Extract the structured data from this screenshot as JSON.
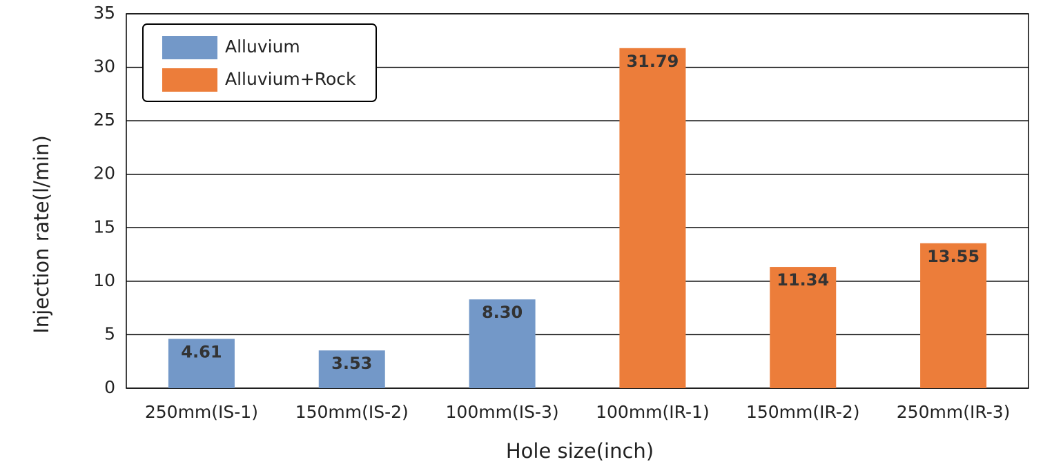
{
  "chart_data": {
    "type": "bar",
    "categories": [
      "250mm(IS-1)",
      "150mm(IS-2)",
      "100mm(IS-3)",
      "100mm(IR-1)",
      "150mm(IR-2)",
      "250mm(IR-3)"
    ],
    "series": [
      {
        "name": "Alluvium",
        "color": "#7398c8",
        "values": [
          4.61,
          3.53,
          8.3,
          null,
          null,
          null
        ],
        "value_labels": [
          "4.61",
          "3.53",
          "8.30",
          null,
          null,
          null
        ]
      },
      {
        "name": "Alluvium+Rock",
        "color": "#ec7d3a",
        "values": [
          null,
          null,
          null,
          31.79,
          11.34,
          13.55
        ],
        "value_labels": [
          null,
          null,
          null,
          "31.79",
          "11.34",
          "13.55"
        ]
      }
    ],
    "xlabel": "Hole size(inch)",
    "ylabel": "Injection rate(l/min)",
    "ylim": [
      0,
      35
    ],
    "yticks": [
      0,
      5,
      10,
      15,
      20,
      25,
      30,
      35
    ],
    "grid": true,
    "legend": "upper left"
  }
}
